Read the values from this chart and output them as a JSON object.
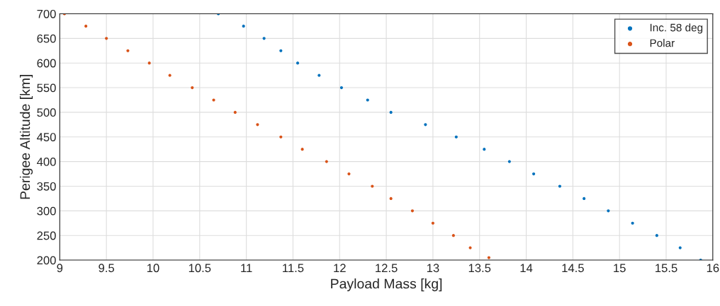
{
  "chart_data": {
    "type": "scatter",
    "xlabel": "Payload Mass [kg]",
    "ylabel": "Perigee Altitude [km]",
    "xlim": [
      9,
      16
    ],
    "xticks": [
      9,
      9.5,
      10,
      10.5,
      11,
      11.5,
      12,
      12.5,
      13,
      13.5,
      14,
      14.5,
      15,
      15.5,
      16
    ],
    "ylim": [
      200,
      700
    ],
    "yticks": [
      200,
      250,
      300,
      350,
      400,
      450,
      500,
      550,
      600,
      650,
      700
    ],
    "grid": true,
    "legend": "top right",
    "marker": "circle",
    "series": [
      {
        "name": "Inc. 58 deg",
        "color": "#0072bd",
        "x": [
          10.7,
          10.97,
          11.19,
          11.37,
          11.55,
          11.78,
          12.02,
          12.3,
          12.55,
          12.92,
          13.25,
          13.55,
          13.82,
          14.08,
          14.36,
          14.62,
          14.88,
          15.14,
          15.4,
          15.65,
          15.87
        ],
        "values": [
          700,
          675,
          650,
          625,
          600,
          575,
          550,
          525,
          500,
          475,
          450,
          425,
          400,
          375,
          350,
          325,
          300,
          275,
          250,
          225,
          200
        ]
      },
      {
        "name": "Polar",
        "color": "#d95319",
        "x": [
          9.05,
          9.28,
          9.5,
          9.73,
          9.96,
          10.18,
          10.42,
          10.65,
          10.88,
          11.12,
          11.37,
          11.6,
          11.86,
          12.1,
          12.35,
          12.55,
          12.78,
          13.0,
          13.22,
          13.4,
          13.6
        ],
        "values": [
          700,
          675,
          650,
          625,
          600,
          575,
          550,
          525,
          500,
          475,
          450,
          425,
          400,
          375,
          350,
          325,
          300,
          275,
          250,
          225,
          205
        ]
      }
    ]
  }
}
